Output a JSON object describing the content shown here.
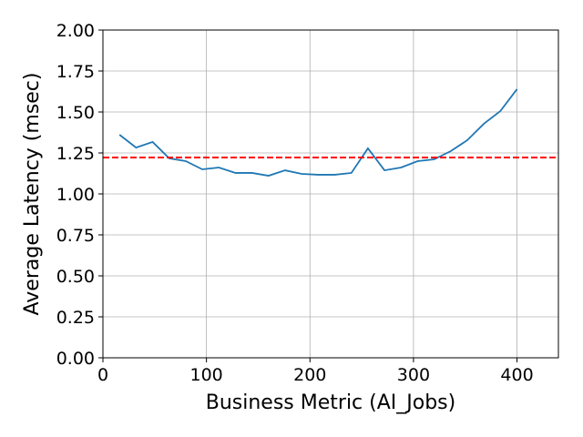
{
  "chart_data": {
    "type": "line",
    "x_label": "Business Metric (AI_Jobs)",
    "y_label": "Average Latency (msec)",
    "x": [
      16,
      32,
      48,
      64,
      80,
      96,
      112,
      128,
      144,
      160,
      176,
      192,
      208,
      224,
      240,
      256,
      272,
      288,
      304,
      320,
      336,
      352,
      368,
      384,
      400
    ],
    "series": [
      {
        "color": "#1f77b4",
        "values": [
          1.361,
          1.283,
          1.317,
          1.217,
          1.2,
          1.15,
          1.161,
          1.128,
          1.128,
          1.111,
          1.144,
          1.122,
          1.117,
          1.117,
          1.128,
          1.278,
          1.144,
          1.161,
          1.2,
          1.211,
          1.261,
          1.328,
          1.428,
          1.506,
          1.639
        ]
      }
    ],
    "reference_line": {
      "value": 1.222,
      "color": "#ff0000"
    },
    "xlim": [
      0,
      440
    ],
    "xticks": [
      0,
      100,
      200,
      300,
      400
    ],
    "ylim": [
      0,
      2
    ],
    "yticks": [
      {
        "value": 0,
        "label": "0.00"
      },
      {
        "value": 0.25,
        "label": "0.25"
      },
      {
        "value": 0.5,
        "label": "0.50"
      },
      {
        "value": 0.75,
        "label": "0.75"
      },
      {
        "value": 1,
        "label": "1.00"
      },
      {
        "value": 1.25,
        "label": "1.25"
      },
      {
        "value": 1.5,
        "label": "1.50"
      },
      {
        "value": 1.75,
        "label": "1.75"
      },
      {
        "value": 2,
        "label": "2.00"
      }
    ],
    "grid": true
  }
}
